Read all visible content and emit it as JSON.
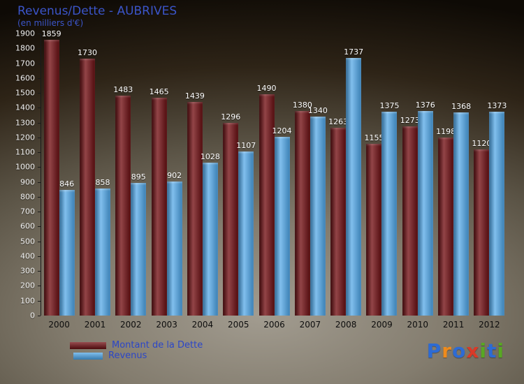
{
  "title": "Revenus/Dette - AUBRIVES",
  "subtitle": "(en milliers d'€)",
  "chart_data": {
    "type": "bar",
    "categories": [
      "2000",
      "2001",
      "2002",
      "2003",
      "2004",
      "2005",
      "2006",
      "2007",
      "2008",
      "2009",
      "2010",
      "2011",
      "2012"
    ],
    "series": [
      {
        "name": "Montant de la Dette",
        "color": "#741014",
        "values": [
          1859,
          1730,
          1483,
          1465,
          1439,
          1296,
          1490,
          1380,
          1263,
          1155,
          1273,
          1198,
          1120
        ]
      },
      {
        "name": "Revenus",
        "color": "#4aa3e6",
        "values": [
          846,
          858,
          895,
          902,
          1028,
          1107,
          1204,
          1340,
          1737,
          1375,
          1376,
          1368,
          1373
        ]
      }
    ],
    "title": "Revenus/Dette - AUBRIVES",
    "xlabel": "",
    "ylabel": "(en milliers d'€)",
    "ylim": [
      0,
      1900
    ],
    "ytick_step": 100,
    "grid": false,
    "legend_position": "bottom-left"
  },
  "legend": {
    "dette_label": "Montant de la Dette",
    "revenus_label": "Revenus"
  },
  "logo": {
    "text": "Proxiti",
    "letters": [
      {
        "ch": "P",
        "color": "#2d6bd4"
      },
      {
        "ch": "r",
        "color": "#ef8b1c"
      },
      {
        "ch": "o",
        "color": "#2d6bd4"
      },
      {
        "ch": "x",
        "color": "#d93a28"
      },
      {
        "ch": "i",
        "color": "#58a823"
      },
      {
        "ch": "t",
        "color": "#2d6bd4"
      },
      {
        "ch": "i",
        "color": "#58a823"
      }
    ]
  }
}
